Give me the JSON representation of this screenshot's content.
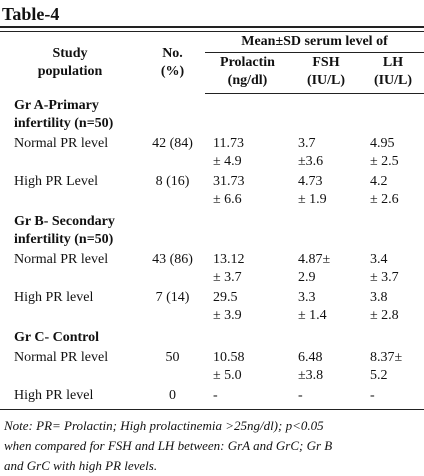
{
  "title": "Table-4",
  "table": {
    "header": {
      "study": "Study\npopulation",
      "no": "No.\n(%)",
      "mean": "Mean±SD serum level of",
      "columns": [
        "Prolactin\n(ng/dl)",
        "FSH\n(IU/L)",
        "LH\n(IU/L)"
      ]
    },
    "groups": [
      {
        "label": "Gr A-Primary\ninfertility (n=50)",
        "rows": [
          [
            "Normal PR level",
            "42 (84)",
            "11.73\n± 4.9",
            "3.7\n±3.6",
            "4.95\n± 2.5"
          ],
          [
            "High PR Level",
            "8 (16)",
            "31.73\n± 6.6",
            "4.73\n± 1.9",
            "4.2\n± 2.6"
          ]
        ]
      },
      {
        "label": "Gr B- Secondary\n infertility (n=50)",
        "rows": [
          [
            "Normal PR level",
            "43 (86)",
            "13.12\n± 3.7",
            "4.87±\n2.9",
            "3.4\n± 3.7"
          ],
          [
            "High PR level",
            "7 (14)",
            "29.5\n± 3.9",
            "3.3\n± 1.4",
            "3.8\n± 2.8"
          ]
        ]
      },
      {
        "label": "Gr C- Control",
        "rows": [
          [
            "Normal PR level",
            "50",
            "10.58\n± 5.0",
            "6.48\n±3.8",
            "8.37±\n5.2"
          ],
          [
            "High PR level",
            "0",
            "-",
            "-",
            "-"
          ]
        ]
      }
    ]
  },
  "note": "Note: PR= Prolactin; High prolactinemia >25ng/dl); p<0.05\nwhen compared for FSH and LH between: GrA and GrC; Gr B\nand GrC with high PR levels."
}
